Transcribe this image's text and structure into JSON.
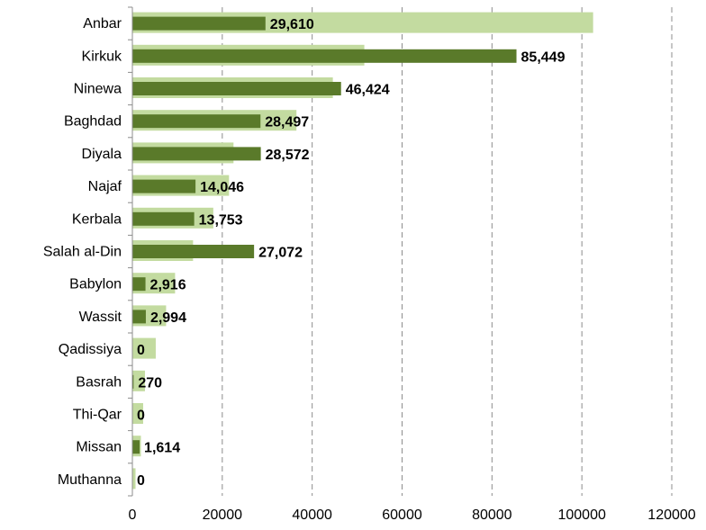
{
  "chart_data": {
    "type": "bar",
    "orientation": "horizontal",
    "categories": [
      "Anbar",
      "Kirkuk",
      "Ninewa",
      "Baghdad",
      "Diyala",
      "Najaf",
      "Kerbala",
      "Salah al-Din",
      "Babylon",
      "Wassit",
      "Qadissiya",
      "Basrah",
      "Thi-Qar",
      "Missan",
      "Muthanna"
    ],
    "series": [
      {
        "color": "#c3dba0",
        "values": [
          102500,
          51600,
          44600,
          36500,
          22500,
          21500,
          18000,
          13500,
          9500,
          7500,
          5200,
          2800,
          2400,
          1900,
          700
        ]
      },
      {
        "color": "#5a7a2a",
        "values": [
          29610,
          85449,
          46424,
          28497,
          28572,
          14046,
          13753,
          27072,
          2916,
          2994,
          0,
          270,
          0,
          1614,
          0
        ],
        "labels": [
          "29,610",
          "85,449",
          "46,424",
          "28,497",
          "28,572",
          "14,046",
          "13,753",
          "27,072",
          "2,916",
          "2,994",
          "0",
          "270",
          "0",
          "1,614",
          "0"
        ]
      }
    ],
    "xlim": [
      0,
      120000
    ],
    "xticks": [
      "0",
      "20000",
      "40000",
      "60000",
      "80000",
      "100000",
      "120000"
    ],
    "grid": "vertical dashed",
    "title": "",
    "xlabel": "",
    "ylabel": ""
  }
}
